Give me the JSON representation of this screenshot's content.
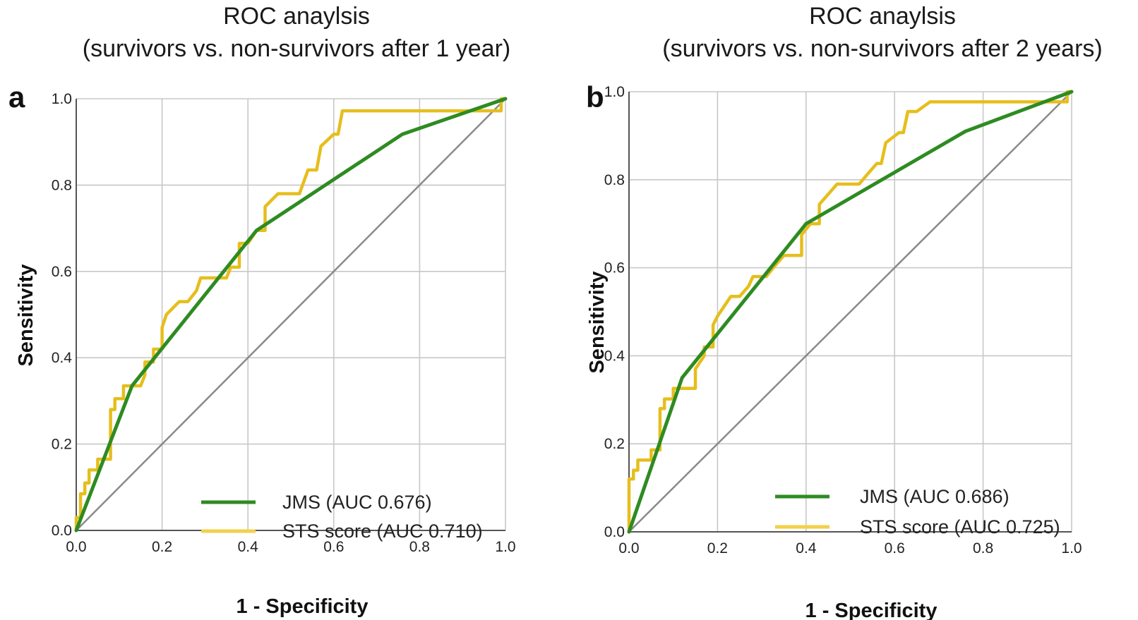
{
  "chart_data": [
    {
      "panel": "a",
      "type": "line",
      "title": [
        "ROC anaylsis",
        "(survivors vs. non-survivors after 1 year)"
      ],
      "xlabel": "1 - Specificity",
      "ylabel": "Sensitivity",
      "xlim": [
        0,
        1
      ],
      "ylim": [
        0,
        1
      ],
      "ticks": [
        "0.0",
        "0.2",
        "0.4",
        "0.6",
        "0.8",
        "1.0"
      ],
      "grid": true,
      "legend_position": "bottom-right",
      "series": [
        {
          "name": "JMS (AUC 0.676)",
          "color": "#2e8b22",
          "points": [
            [
              0,
              0
            ],
            [
              0.13,
              0.335
            ],
            [
              0.42,
              0.695
            ],
            [
              0.76,
              0.918
            ],
            [
              1,
              1
            ]
          ]
        },
        {
          "name": "STS score (AUC 0.710)",
          "color": "#e6be1c",
          "points": [
            [
              0,
              0
            ],
            [
              0,
              0.03
            ],
            [
              0.01,
              0.03
            ],
            [
              0.01,
              0.085
            ],
            [
              0.02,
              0.085
            ],
            [
              0.02,
              0.11
            ],
            [
              0.03,
              0.11
            ],
            [
              0.03,
              0.14
            ],
            [
              0.05,
              0.14
            ],
            [
              0.05,
              0.165
            ],
            [
              0.08,
              0.165
            ],
            [
              0.08,
              0.28
            ],
            [
              0.09,
              0.28
            ],
            [
              0.09,
              0.305
            ],
            [
              0.11,
              0.305
            ],
            [
              0.11,
              0.335
            ],
            [
              0.15,
              0.335
            ],
            [
              0.16,
              0.36
            ],
            [
              0.16,
              0.39
            ],
            [
              0.18,
              0.39
            ],
            [
              0.18,
              0.42
            ],
            [
              0.2,
              0.42
            ],
            [
              0.2,
              0.47
            ],
            [
              0.21,
              0.5
            ],
            [
              0.24,
              0.53
            ],
            [
              0.26,
              0.53
            ],
            [
              0.28,
              0.555
            ],
            [
              0.29,
              0.585
            ],
            [
              0.35,
              0.585
            ],
            [
              0.36,
              0.61
            ],
            [
              0.38,
              0.61
            ],
            [
              0.38,
              0.665
            ],
            [
              0.4,
              0.665
            ],
            [
              0.42,
              0.695
            ],
            [
              0.44,
              0.695
            ],
            [
              0.44,
              0.75
            ],
            [
              0.47,
              0.78
            ],
            [
              0.52,
              0.78
            ],
            [
              0.54,
              0.835
            ],
            [
              0.56,
              0.835
            ],
            [
              0.57,
              0.89
            ],
            [
              0.6,
              0.918
            ],
            [
              0.61,
              0.918
            ],
            [
              0.62,
              0.972
            ],
            [
              0.99,
              0.972
            ],
            [
              0.99,
              1
            ],
            [
              1,
              1
            ]
          ]
        }
      ]
    },
    {
      "panel": "b",
      "type": "line",
      "title": [
        "ROC anaylsis",
        "(survivors vs. non-survivors after 2 years)"
      ],
      "xlabel": "1 - Specificity",
      "ylabel": "Sensitivity",
      "xlim": [
        0,
        1
      ],
      "ylim": [
        0,
        1
      ],
      "ticks": [
        "0.0",
        "0.2",
        "0.4",
        "0.6",
        "0.8",
        "1.0"
      ],
      "grid": true,
      "legend_position": "bottom-right",
      "series": [
        {
          "name": "JMS (AUC 0.686)",
          "color": "#2e8b22",
          "points": [
            [
              0,
              0
            ],
            [
              0.12,
              0.35
            ],
            [
              0.4,
              0.7
            ],
            [
              0.76,
              0.91
            ],
            [
              1,
              1
            ]
          ]
        },
        {
          "name": "STS score (AUC 0.725)",
          "color": "#e6be1c",
          "points": [
            [
              0,
              0
            ],
            [
              0,
              0.12
            ],
            [
              0.01,
              0.12
            ],
            [
              0.01,
              0.14
            ],
            [
              0.02,
              0.14
            ],
            [
              0.02,
              0.163
            ],
            [
              0.05,
              0.163
            ],
            [
              0.05,
              0.186
            ],
            [
              0.07,
              0.186
            ],
            [
              0.07,
              0.28
            ],
            [
              0.08,
              0.28
            ],
            [
              0.08,
              0.302
            ],
            [
              0.1,
              0.302
            ],
            [
              0.1,
              0.326
            ],
            [
              0.15,
              0.326
            ],
            [
              0.15,
              0.37
            ],
            [
              0.17,
              0.4
            ],
            [
              0.17,
              0.42
            ],
            [
              0.19,
              0.42
            ],
            [
              0.19,
              0.47
            ],
            [
              0.2,
              0.49
            ],
            [
              0.23,
              0.535
            ],
            [
              0.25,
              0.535
            ],
            [
              0.27,
              0.558
            ],
            [
              0.28,
              0.58
            ],
            [
              0.31,
              0.58
            ],
            [
              0.33,
              0.605
            ],
            [
              0.35,
              0.628
            ],
            [
              0.39,
              0.628
            ],
            [
              0.39,
              0.675
            ],
            [
              0.41,
              0.7
            ],
            [
              0.43,
              0.7
            ],
            [
              0.43,
              0.744
            ],
            [
              0.45,
              0.767
            ],
            [
              0.47,
              0.79
            ],
            [
              0.52,
              0.79
            ],
            [
              0.54,
              0.814
            ],
            [
              0.56,
              0.837
            ],
            [
              0.57,
              0.837
            ],
            [
              0.58,
              0.884
            ],
            [
              0.61,
              0.907
            ],
            [
              0.62,
              0.907
            ],
            [
              0.63,
              0.955
            ],
            [
              0.65,
              0.955
            ],
            [
              0.68,
              0.977
            ],
            [
              0.99,
              0.977
            ],
            [
              0.99,
              1
            ],
            [
              1,
              1
            ]
          ]
        }
      ]
    }
  ]
}
